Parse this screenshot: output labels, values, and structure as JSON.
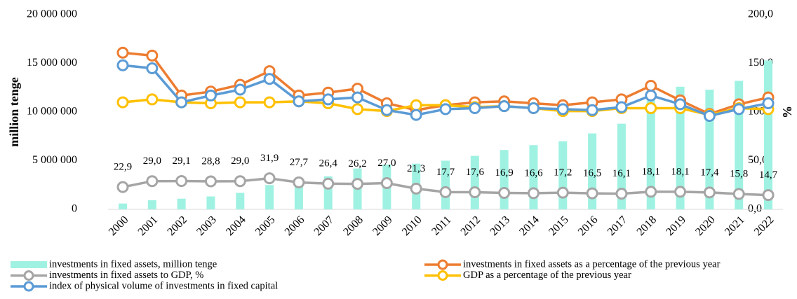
{
  "chart_data": {
    "type": "combo",
    "y_label": "million tenge",
    "y2_label": "%",
    "categories": [
      "2000",
      "2001",
      "2002",
      "2003",
      "2004",
      "2005",
      "2006",
      "2007",
      "2008",
      "2009",
      "2010",
      "2011",
      "2012",
      "2013",
      "2014",
      "2015",
      "2016",
      "2017",
      "2018",
      "2019",
      "2020",
      "2021",
      "2022"
    ],
    "ylim": [
      0,
      20000000
    ],
    "yticks": [
      0,
      {
        "value": 5000000,
        "label": "5 000 000"
      },
      {
        "value": 10000000,
        "label": "10 000 000"
      },
      {
        "value": 15000000,
        "label": "15 000 000"
      },
      {
        "value": 20000000,
        "label": "20 000 000"
      }
    ],
    "y2lim": [
      0,
      200
    ],
    "y2ticks": [
      {
        "value": 0,
        "label": "0,0"
      },
      {
        "value": 50,
        "label": "50,0"
      },
      {
        "value": 100,
        "label": "100,0"
      },
      {
        "value": 150,
        "label": "150,0"
      },
      {
        "value": 200,
        "label": "200,0"
      }
    ],
    "series": [
      {
        "name": "investments in fixed assets, million tenge",
        "type": "bar",
        "color": "#9ff2e2",
        "values": [
          600000,
          950000,
          1100000,
          1330000,
          1700000,
          2500000,
          2900000,
          3400000,
          4200000,
          4600000,
          4700000,
          5000000,
          5500000,
          6100000,
          6600000,
          7000000,
          7800000,
          8800000,
          11200000,
          12600000,
          12300000,
          13200000,
          15300000
        ]
      },
      {
        "name": "investments in fixed assets as a percentage of the previous year",
        "type": "line",
        "axis": "y2",
        "color": "#ed7d31",
        "values": [
          161,
          158,
          117,
          121,
          128,
          142,
          117,
          120,
          124,
          109,
          102,
          107,
          110,
          111,
          109,
          107,
          110,
          113,
          127,
          112,
          98,
          108,
          115
        ]
      },
      {
        "name": "investments in fixed assets to GDP, %",
        "type": "line",
        "axis": "y2",
        "color": "#a5a5a5",
        "values": [
          22.9,
          29.0,
          29.1,
          28.8,
          29.0,
          31.9,
          27.7,
          26.4,
          26.2,
          27.0,
          21.3,
          17.7,
          17.6,
          16.9,
          16.6,
          17.2,
          16.5,
          16.1,
          18.1,
          18.1,
          17.4,
          15.8,
          14.7
        ],
        "value_labels": [
          "22,9",
          "29,0",
          "29,1",
          "28,8",
          "29,0",
          "31,9",
          "27,7",
          "26,4",
          "26,2",
          "27,0",
          "21,3",
          "17,7",
          "17,6",
          "16,9",
          "16,6",
          "17,2",
          "16,5",
          "16,1",
          "18,1",
          "18,1",
          "17,4",
          "15,8",
          "14,7"
        ]
      },
      {
        "name": "GDP as a percentage of the previous year",
        "type": "line",
        "axis": "y2",
        "color": "#ffc000",
        "values": [
          110,
          113,
          110,
          109,
          110,
          110,
          111,
          109,
          103,
          101,
          107,
          107,
          105,
          106,
          104,
          101,
          101,
          104,
          104,
          104,
          97,
          104,
          103
        ]
      },
      {
        "name": "index of physical volume of investments in fixed capital",
        "type": "line",
        "axis": "y2",
        "color": "#5b9bd5",
        "values": [
          148,
          145,
          110,
          117,
          123,
          134,
          111,
          113,
          115,
          102,
          97,
          103,
          104,
          106,
          104,
          103,
          102,
          105,
          117,
          108,
          96,
          103,
          109
        ]
      }
    ]
  }
}
